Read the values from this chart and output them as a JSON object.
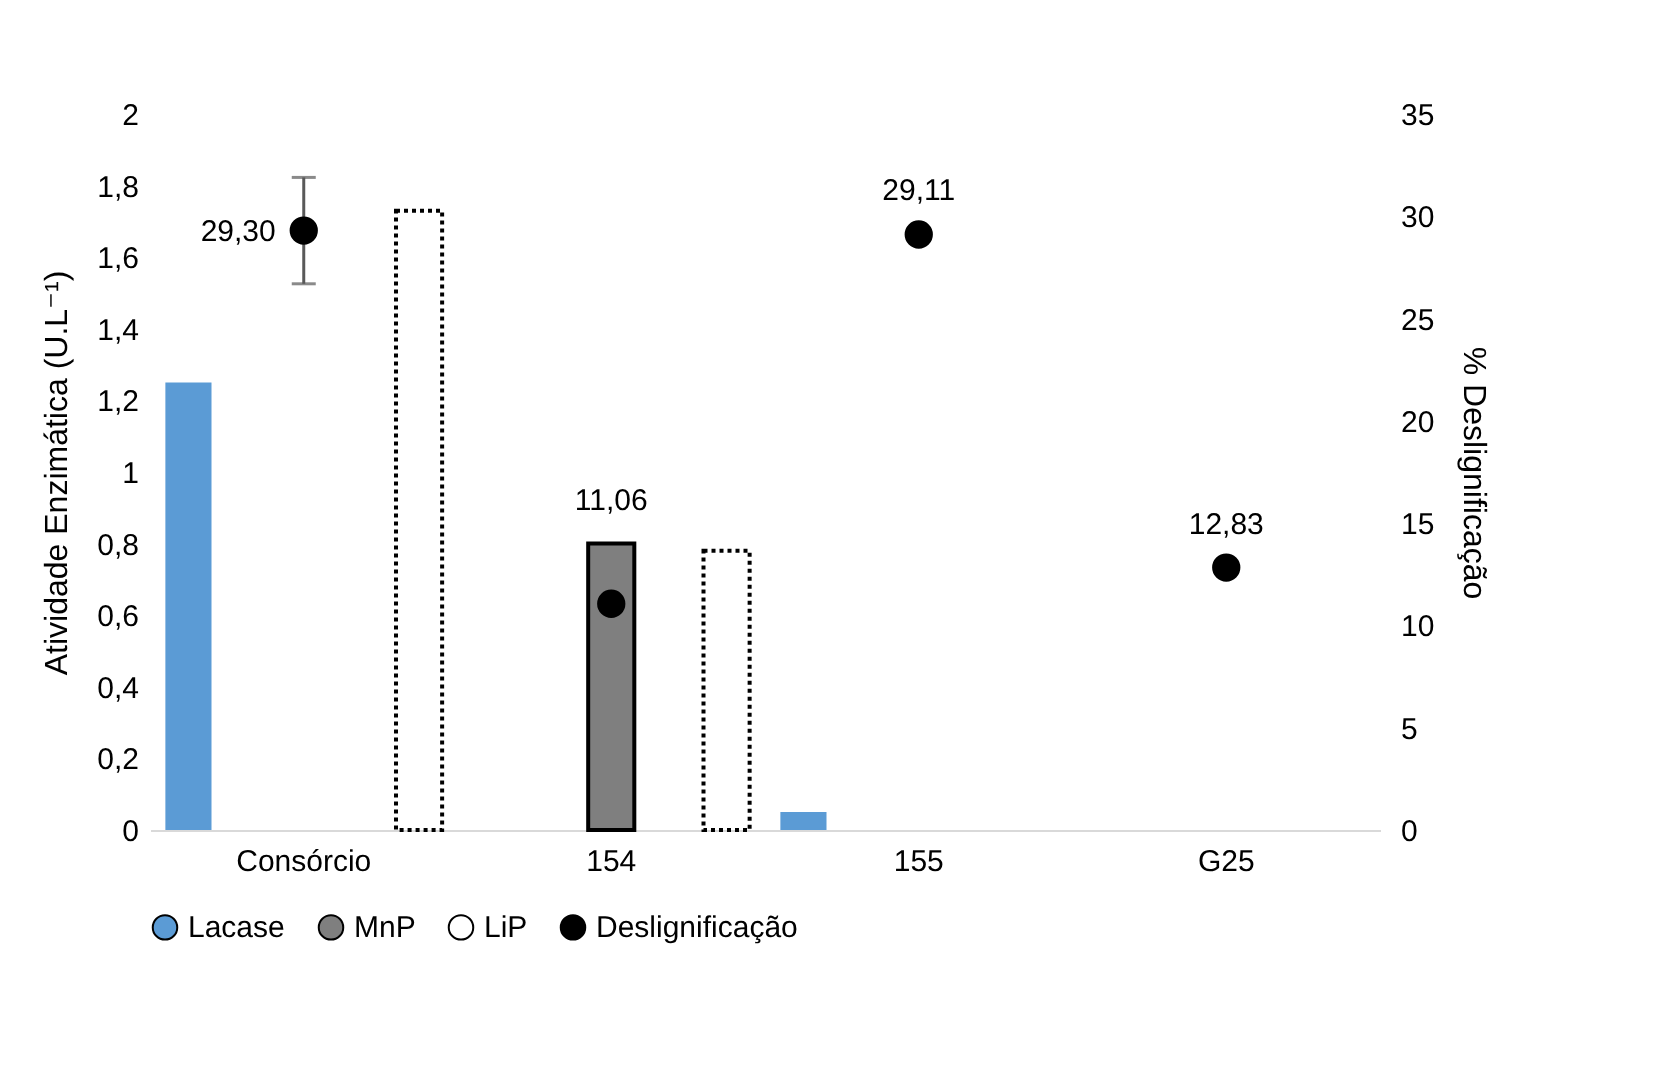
{
  "chart_data": {
    "type": "bar",
    "xlabel": null,
    "ylabel": "Atividade Enzimática (U.L⁻¹)",
    "y2label": "% Deslignificação",
    "categories": [
      "Consórcio",
      "154",
      "155",
      "G25"
    ],
    "series": [
      {
        "name": "Lacase",
        "color": "#5b9bd5",
        "values": [
          1.25,
          null,
          0.05,
          null
        ]
      },
      {
        "name": "MnP",
        "color": "#7f7f7f",
        "values": [
          null,
          0.8,
          null,
          null
        ]
      },
      {
        "name": "LiP",
        "color": "#ffffff",
        "line_style": "dotted",
        "values": [
          1.73,
          0.78,
          null,
          null
        ]
      },
      {
        "name": "Deslignificação",
        "type": "scatter",
        "axis": "y2",
        "color": "#000000",
        "marker": "circle",
        "values": [
          29.3,
          11.06,
          29.11,
          12.83
        ],
        "errors": [
          2.6,
          null,
          null,
          null
        ],
        "value_labels": [
          "29,30",
          "11,06",
          "29,11",
          "12,83"
        ]
      }
    ],
    "ylim": [
      0,
      2
    ],
    "yticks": [
      0,
      {
        "value": 0.2,
        "label": "0,2"
      },
      {
        "value": 0.4,
        "label": "0,4"
      },
      {
        "value": 0.6,
        "label": "0,6"
      },
      {
        "value": 0.8,
        "label": "0,8"
      },
      1,
      {
        "value": 1.2,
        "label": "1,2"
      },
      {
        "value": 1.4,
        "label": "1,4"
      },
      {
        "value": 1.6,
        "label": "1,6"
      },
      {
        "value": 1.8,
        "label": "1,8"
      },
      2
    ],
    "y2lim": [
      0,
      35
    ],
    "y2ticks": [
      0,
      5,
      10,
      15,
      20,
      25,
      30,
      35
    ],
    "grid": false,
    "legend": "bottom"
  }
}
